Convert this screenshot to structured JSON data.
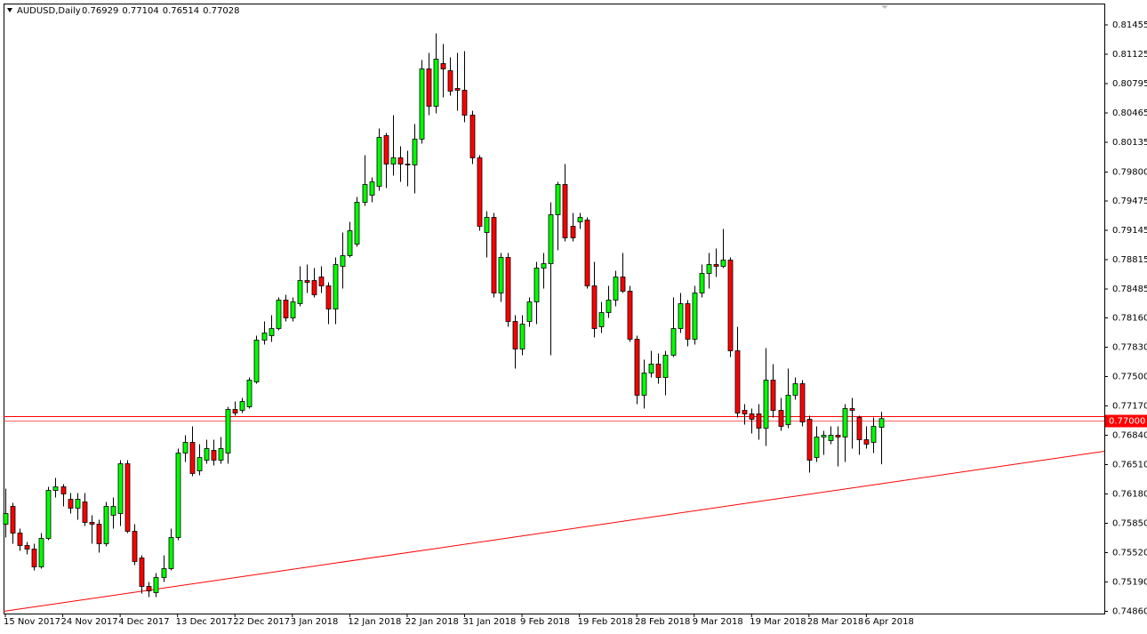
{
  "chart_data": {
    "type": "candlestick",
    "title": "AUDUSD,Daily",
    "header_values": [
      0.76929,
      0.77104,
      0.76514,
      0.77028
    ],
    "categories": [
      "15 Nov 2017",
      null,
      null,
      null,
      null,
      null,
      null,
      null,
      "24 Nov 2017",
      null,
      null,
      null,
      null,
      null,
      null,
      null,
      "4 Dec 2017",
      null,
      null,
      null,
      null,
      null,
      null,
      null,
      "13 Dec 2017",
      null,
      null,
      null,
      null,
      null,
      null,
      null,
      "22 Dec 2017",
      null,
      null,
      null,
      null,
      null,
      null,
      null,
      "3 Jan 2018",
      null,
      null,
      null,
      null,
      null,
      null,
      null,
      "12 Jan 2018",
      null,
      null,
      null,
      null,
      null,
      null,
      null,
      "22 Jan 2018",
      null,
      null,
      null,
      null,
      null,
      null,
      null,
      "31 Jan 2018",
      null,
      null,
      null,
      null,
      null,
      null,
      null,
      "9 Feb 2018",
      null,
      null,
      null,
      null,
      null,
      null,
      null,
      "19 Feb 2018",
      null,
      null,
      null,
      null,
      null,
      null,
      null,
      "28 Feb 2018",
      null,
      null,
      null,
      null,
      null,
      null,
      null,
      "9 Mar 2018",
      null,
      null,
      null,
      null,
      null,
      null,
      null,
      "19 Mar 2018",
      null,
      null,
      null,
      null,
      null,
      null,
      null,
      "28 Mar 2018",
      null,
      null,
      null,
      null,
      null,
      null,
      null,
      "6 Apr 2018",
      null,
      null
    ],
    "open": [
      0.7584,
      0.7604,
      0.7574,
      0.756,
      0.7556,
      0.7536,
      0.7568,
      0.7622,
      0.7626,
      0.7612,
      0.7602,
      0.7609,
      0.7586,
      0.7584,
      0.7562,
      0.7594,
      0.7596,
      0.7652,
      0.7576,
      0.7546,
      0.7514,
      0.7507,
      0.7524,
      0.7534,
      0.7569,
      0.7664,
      0.7676,
      0.7644,
      0.7656,
      0.7667,
      0.7656,
      0.7664,
      0.7713,
      0.7712,
      0.7716,
      0.7744,
      0.7791,
      0.7796,
      0.7804,
      0.7836,
      0.7816,
      0.7832,
      0.7858,
      0.7858,
      0.7862,
      0.7852,
      0.7826,
      0.7874,
      0.7886,
      0.7899,
      0.7946,
      0.7954,
      0.7964,
      0.8021,
      0.7989,
      0.7996,
      0.7989,
      0.7988,
      0.8017,
      0.8096,
      0.8054,
      0.8102,
      0.8094,
      0.8074,
      0.8072,
      0.8044,
      0.7996,
      0.7912,
      0.7929,
      0.7844,
      0.7884,
      0.7812,
      0.7781,
      0.7812,
      0.7834,
      0.7872,
      0.7877,
      0.7932,
      0.7966,
      0.7919,
      0.7924,
      0.7926,
      0.7852,
      0.7806,
      0.7822,
      0.7836,
      0.7862,
      0.7846,
      0.7792,
      0.7729,
      0.7754,
      0.7764,
      0.7749,
      0.7774,
      0.7804,
      0.7832,
      0.7792,
      0.7844,
      0.7866,
      0.7876,
      0.7874,
      0.7881,
      0.7779,
      0.7712,
      0.7708,
      0.7708,
      0.7692,
      0.7746,
      0.7712,
      0.7696,
      0.7729,
      0.7742,
      0.7702,
      0.7659,
      0.7682,
      0.7678,
      0.7684,
      0.7682,
      0.7714,
      0.7704,
      0.7679,
      0.7676,
      0.76929
    ],
    "high": [
      0.7624,
      0.7608,
      0.7579,
      0.7564,
      0.7562,
      0.7574,
      0.7626,
      0.7636,
      0.7629,
      0.7619,
      0.7619,
      0.7619,
      0.7594,
      0.7589,
      0.7609,
      0.7614,
      0.7656,
      0.7656,
      0.7584,
      0.7549,
      0.7519,
      0.7529,
      0.7549,
      0.7579,
      0.7669,
      0.7684,
      0.7694,
      0.7674,
      0.7679,
      0.7679,
      0.7682,
      0.7716,
      0.7722,
      0.7726,
      0.7749,
      0.7796,
      0.7812,
      0.7819,
      0.7839,
      0.7842,
      0.7839,
      0.7874,
      0.7876,
      0.7872,
      0.7874,
      0.7856,
      0.7884,
      0.7912,
      0.7924,
      0.7952,
      0.7999,
      0.7974,
      0.8029,
      0.8024,
      0.8044,
      0.8009,
      0.8004,
      0.8034,
      0.8106,
      0.8114,
      0.8136,
      0.8124,
      0.8109,
      0.8114,
      0.8116,
      0.8049,
      0.7999,
      0.7936,
      0.7934,
      0.7889,
      0.7889,
      0.7819,
      0.7819,
      0.7839,
      0.7879,
      0.7889,
      0.7946,
      0.7969,
      0.7989,
      0.7934,
      0.7934,
      0.7929,
      0.7879,
      0.7834,
      0.7852,
      0.7869,
      0.7889,
      0.7852,
      0.7796,
      0.7769,
      0.7779,
      0.7776,
      0.7779,
      0.7839,
      0.7844,
      0.7836,
      0.7852,
      0.7876,
      0.7889,
      0.7894,
      0.7916,
      0.7884,
      0.7806,
      0.7719,
      0.7714,
      0.7719,
      0.7782,
      0.7764,
      0.7726,
      0.7759,
      0.7749,
      0.7746,
      0.7706,
      0.7694,
      0.7689,
      0.7694,
      0.7694,
      0.7719,
      0.7726,
      0.7706,
      0.7694,
      0.7704,
      0.77104
    ],
    "low": [
      0.7569,
      0.7562,
      0.7554,
      0.755,
      0.7532,
      0.7534,
      0.7566,
      0.7614,
      0.7604,
      0.7596,
      0.7589,
      0.7582,
      0.7562,
      0.7552,
      0.7559,
      0.7579,
      0.7582,
      0.7574,
      0.7538,
      0.7506,
      0.7502,
      0.7502,
      0.7519,
      0.7532,
      0.7566,
      0.7654,
      0.7638,
      0.7639,
      0.7652,
      0.765,
      0.7652,
      0.7652,
      0.7706,
      0.7709,
      0.7714,
      0.7742,
      0.7786,
      0.7789,
      0.7802,
      0.7812,
      0.7812,
      0.7829,
      0.7844,
      0.7839,
      0.7844,
      0.7809,
      0.7809,
      0.7849,
      0.7884,
      0.7896,
      0.7942,
      0.7946,
      0.7959,
      0.7962,
      0.7976,
      0.7969,
      0.7964,
      0.7956,
      0.8012,
      0.8044,
      0.8046,
      0.8064,
      0.8066,
      0.8049,
      0.8036,
      0.7989,
      0.7914,
      0.7884,
      0.7839,
      0.7834,
      0.7806,
      0.7759,
      0.7774,
      0.7806,
      0.7809,
      0.7849,
      0.7774,
      0.7892,
      0.7902,
      0.7902,
      0.7916,
      0.7849,
      0.7794,
      0.7799,
      0.7816,
      0.7829,
      0.7844,
      0.7789,
      0.7719,
      0.7714,
      0.7749,
      0.7742,
      0.7729,
      0.7772,
      0.7799,
      0.7784,
      0.7786,
      0.7839,
      0.7849,
      0.7862,
      0.7872,
      0.7772,
      0.7704,
      0.7696,
      0.7686,
      0.7679,
      0.7672,
      0.7704,
      0.7689,
      0.7692,
      0.7724,
      0.7694,
      0.7642,
      0.7654,
      0.7662,
      0.7674,
      0.7649,
      0.7654,
      0.7669,
      0.7662,
      0.7669,
      0.7664,
      0.76514
    ],
    "close": [
      0.7596,
      0.7574,
      0.756,
      0.7556,
      0.7536,
      0.7568,
      0.7622,
      0.7626,
      0.7618,
      0.7602,
      0.7612,
      0.7586,
      0.7584,
      0.7562,
      0.7604,
      0.7604,
      0.7652,
      0.7576,
      0.7542,
      0.7514,
      0.7509,
      0.7524,
      0.7534,
      0.7569,
      0.7664,
      0.7676,
      0.7641,
      0.7659,
      0.7669,
      0.7656,
      0.7669,
      0.7713,
      0.7709,
      0.7722,
      0.7746,
      0.7791,
      0.7799,
      0.7804,
      0.7836,
      0.7816,
      0.7834,
      0.7858,
      0.7856,
      0.7842,
      0.7852,
      0.7826,
      0.7876,
      0.7886,
      0.7914,
      0.7946,
      0.7966,
      0.7969,
      0.8019,
      0.7989,
      0.7996,
      0.7989,
      0.7988,
      0.8017,
      0.8096,
      0.8054,
      0.8107,
      0.8096,
      0.8071,
      0.8072,
      0.8044,
      0.7996,
      0.7919,
      0.7929,
      0.7844,
      0.7884,
      0.7812,
      0.7781,
      0.7809,
      0.7834,
      0.7872,
      0.7877,
      0.7932,
      0.7966,
      0.7906,
      0.7906,
      0.7929,
      0.7852,
      0.7804,
      0.7822,
      0.7836,
      0.7862,
      0.7846,
      0.7792,
      0.7729,
      0.7754,
      0.7764,
      0.7749,
      0.7774,
      0.7804,
      0.7832,
      0.7792,
      0.7844,
      0.7866,
      0.7876,
      0.7874,
      0.7881,
      0.7779,
      0.7709,
      0.7708,
      0.7702,
      0.7692,
      0.7746,
      0.7712,
      0.7694,
      0.7729,
      0.7742,
      0.7699,
      0.7656,
      0.7682,
      0.7684,
      0.7684,
      0.7682,
      0.7714,
      0.7712,
      0.7679,
      0.7674,
      0.7694,
      0.77028
    ],
    "up_color": "#00ff00",
    "down_color": "#ff0000",
    "ylim": [
      0.74835,
      0.81735
    ],
    "yticks": [
      0.81455,
      0.81125,
      0.80795,
      0.80465,
      0.80135,
      {
        "value": 0.798,
        "label": "0.79800"
      },
      0.79475,
      0.79145,
      0.78815,
      0.78485,
      {
        "value": 0.7816,
        "label": "0.78160"
      },
      {
        "value": 0.7783,
        "label": "0.77830"
      },
      {
        "value": 0.775,
        "label": "0.77500"
      },
      {
        "value": 0.7717,
        "label": "0.77170"
      },
      {
        "value": 0.7684,
        "label": "0.76840"
      },
      {
        "value": 0.7651,
        "label": "0.76510"
      },
      {
        "value": 0.7618,
        "label": "0.76180"
      },
      {
        "value": 0.7585,
        "label": "0.75850"
      },
      {
        "value": 0.7552,
        "label": "0.75520"
      },
      {
        "value": 0.7519,
        "label": "0.75190"
      },
      {
        "value": 0.7486,
        "label": "0.74860"
      }
    ],
    "price_line": {
      "value": 0.77,
      "label": "0.77000"
    },
    "level_line": 0.7705,
    "trendline": {
      "start": 0.7486,
      "end": 0.7666
    },
    "line_color": "#ff0000"
  }
}
